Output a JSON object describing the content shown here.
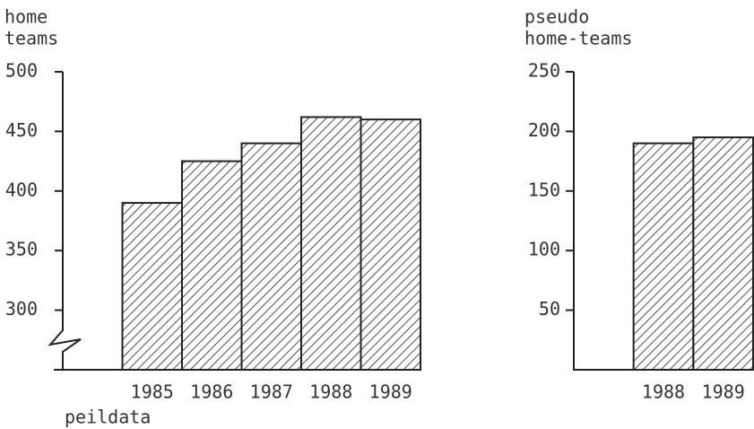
{
  "chart_data": [
    {
      "type": "bar",
      "ylabel": [
        "home",
        "teams"
      ],
      "xlabel": "peildata",
      "categories": [
        "1985",
        "1986",
        "1987",
        "1988",
        "1989"
      ],
      "values": [
        390,
        425,
        440,
        462,
        460
      ],
      "ylim": [
        250,
        500
      ],
      "yticks": [
        300,
        350,
        400,
        450,
        500
      ],
      "broken_axis": true,
      "color": "#222222"
    },
    {
      "type": "bar",
      "ylabel": [
        "pseudo",
        "home-teams"
      ],
      "categories": [
        "1988",
        "1989"
      ],
      "values": [
        190,
        195
      ],
      "ylim": [
        0,
        250
      ],
      "yticks": [
        50,
        100,
        150,
        200,
        250
      ],
      "color": "#222222"
    }
  ]
}
